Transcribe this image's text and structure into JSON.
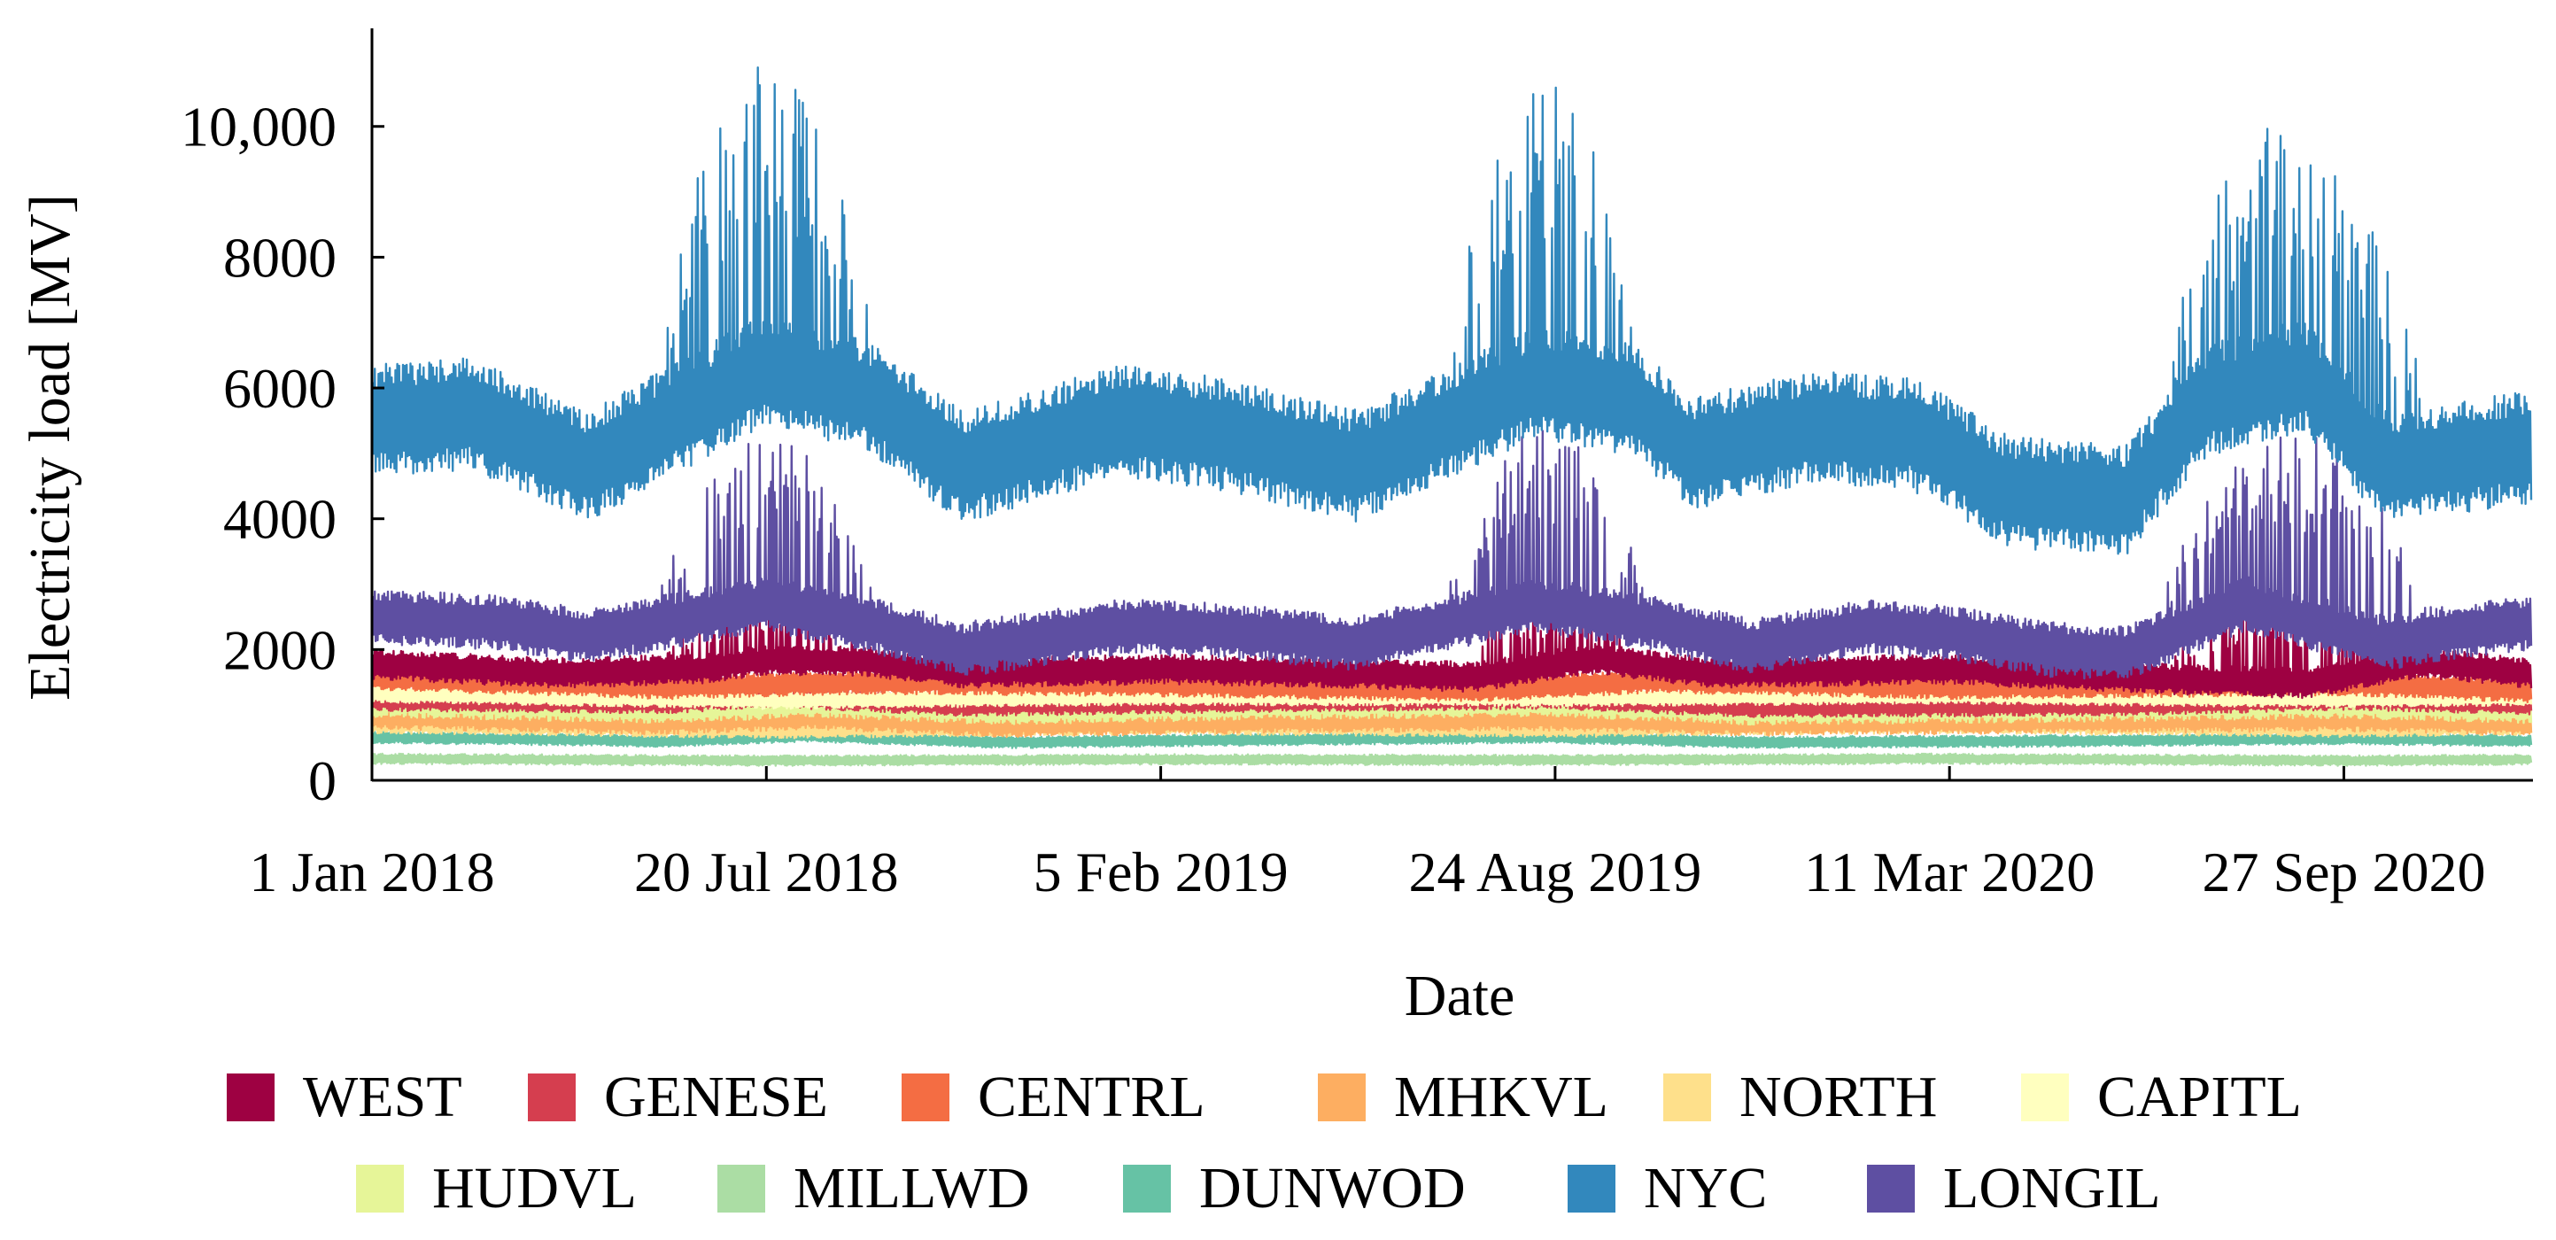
{
  "chart_data": {
    "type": "line",
    "title": "",
    "xlabel": "Date",
    "ylabel": "Electricity load [MV]",
    "ylim": [
      0,
      11500
    ],
    "yticks": [
      0,
      2000,
      4000,
      6000,
      8000,
      10000
    ],
    "ytick_labels": [
      "0",
      "2000",
      "4000",
      "6000",
      "8000",
      "10,000"
    ],
    "xlim": [
      0,
      1095
    ],
    "xticks": [
      0,
      200,
      400,
      600,
      800,
      1000
    ],
    "xtick_labels": [
      "1 Jan 2018",
      "20 Jul 2018",
      "5 Feb 2019",
      "24 Aug 2019",
      "11 Mar 2020",
      "27 Sep 2020"
    ],
    "x_units": "days since 1 Jan 2018",
    "grid": false,
    "legend_position": "bottom",
    "series": [
      {
        "name": "WEST",
        "color": "#9e0142",
        "base": [
          [
            0,
            1780
          ],
          [
            90,
            1640
          ],
          [
            165,
            1700
          ],
          [
            200,
            1840
          ],
          [
            250,
            1820
          ],
          [
            300,
            1640
          ],
          [
            400,
            1700
          ],
          [
            470,
            1660
          ],
          [
            560,
            1580
          ],
          [
            620,
            1860
          ],
          [
            680,
            1640
          ],
          [
            800,
            1700
          ],
          [
            900,
            1560
          ],
          [
            980,
            1480
          ],
          [
            1040,
            1800
          ],
          [
            1100,
            1620
          ]
        ],
        "swing": 230,
        "peaks": [
          [
            140,
            260,
            2700
          ],
          [
            540,
            650,
            2650
          ],
          [
            900,
            1050,
            2700
          ]
        ]
      },
      {
        "name": "GENESE",
        "color": "#d53e4f",
        "base": [
          [
            0,
            1220
          ],
          [
            150,
            1180
          ],
          [
            200,
            1280
          ],
          [
            300,
            1140
          ],
          [
            450,
            1200
          ],
          [
            600,
            1250
          ],
          [
            700,
            1120
          ],
          [
            900,
            1150
          ],
          [
            1000,
            1240
          ],
          [
            1100,
            1160
          ]
        ],
        "swing": 160,
        "peaks": []
      },
      {
        "name": "CENTRL",
        "color": "#f46d43",
        "base": [
          [
            0,
            1560
          ],
          [
            150,
            1420
          ],
          [
            250,
            1500
          ],
          [
            400,
            1460
          ],
          [
            560,
            1380
          ],
          [
            650,
            1520
          ],
          [
            800,
            1420
          ],
          [
            1000,
            1480
          ],
          [
            1100,
            1360
          ]
        ],
        "swing": 180,
        "peaks": []
      },
      {
        "name": "MHKVL",
        "color": "#fdae61",
        "base": [
          [
            0,
            980
          ],
          [
            150,
            900
          ],
          [
            220,
            980
          ],
          [
            320,
            860
          ],
          [
            450,
            920
          ],
          [
            600,
            960
          ],
          [
            700,
            880
          ],
          [
            850,
            920
          ],
          [
            1000,
            950
          ],
          [
            1100,
            880
          ]
        ],
        "swing": 200,
        "peaks": []
      },
      {
        "name": "NORTH",
        "color": "#fee08b",
        "base": [
          [
            0,
            860
          ],
          [
            200,
            780
          ],
          [
            400,
            840
          ],
          [
            600,
            800
          ],
          [
            800,
            860
          ],
          [
            1000,
            800
          ],
          [
            1100,
            840
          ]
        ],
        "swing": 140,
        "peaks": []
      },
      {
        "name": "CAPITL",
        "color": "#ffffbf",
        "base": [
          [
            0,
            1320
          ],
          [
            200,
            1220
          ],
          [
            400,
            1280
          ],
          [
            600,
            1260
          ],
          [
            800,
            1300
          ],
          [
            1000,
            1240
          ],
          [
            1100,
            1280
          ]
        ],
        "swing": 130,
        "peaks": []
      },
      {
        "name": "HUDVL",
        "color": "#e6f598",
        "base": [
          [
            0,
            1180
          ],
          [
            150,
            1080
          ],
          [
            220,
            1180
          ],
          [
            320,
            1060
          ],
          [
            450,
            1140
          ],
          [
            600,
            1180
          ],
          [
            700,
            1060
          ],
          [
            850,
            1100
          ],
          [
            1000,
            1160
          ],
          [
            1100,
            1080
          ]
        ],
        "swing": 210,
        "peaks": []
      },
      {
        "name": "MILLWD",
        "color": "#abdda4",
        "base": [
          [
            0,
            330
          ],
          [
            200,
            300
          ],
          [
            400,
            320
          ],
          [
            600,
            310
          ],
          [
            800,
            330
          ],
          [
            1000,
            300
          ],
          [
            1100,
            320
          ]
        ],
        "swing": 80,
        "peaks": []
      },
      {
        "name": "DUNWOD",
        "color": "#66c2a5",
        "base": [
          [
            0,
            660
          ],
          [
            150,
            600
          ],
          [
            220,
            680
          ],
          [
            320,
            580
          ],
          [
            450,
            620
          ],
          [
            600,
            660
          ],
          [
            700,
            580
          ],
          [
            850,
            600
          ],
          [
            1000,
            640
          ],
          [
            1100,
            600
          ]
        ],
        "swing": 90,
        "peaks": []
      },
      {
        "name": "NYC",
        "color": "#3288bd",
        "base": [
          [
            0,
            5500
          ],
          [
            50,
            5600
          ],
          [
            110,
            4800
          ],
          [
            200,
            6300
          ],
          [
            250,
            5900
          ],
          [
            300,
            4800
          ],
          [
            380,
            5500
          ],
          [
            430,
            5300
          ],
          [
            500,
            4800
          ],
          [
            590,
            6100
          ],
          [
            640,
            5800
          ],
          [
            670,
            5000
          ],
          [
            730,
            5400
          ],
          [
            780,
            5300
          ],
          [
            800,
            5000
          ],
          [
            830,
            4400
          ],
          [
            890,
            4300
          ],
          [
            930,
            5800
          ],
          [
            980,
            6200
          ],
          [
            1020,
            4800
          ],
          [
            1050,
            4900
          ],
          [
            1095,
            5100
          ]
        ],
        "swing": 860,
        "peaks": [
          [
            140,
            260,
            11000
          ],
          [
            540,
            650,
            10700
          ],
          [
            900,
            1050,
            10100
          ]
        ]
      },
      {
        "name": "LONGIL",
        "color": "#5e4fa2",
        "base": [
          [
            0,
            2500
          ],
          [
            60,
            2420
          ],
          [
            110,
            2200
          ],
          [
            200,
            2700
          ],
          [
            250,
            2400
          ],
          [
            300,
            2000
          ],
          [
            380,
            2350
          ],
          [
            430,
            2300
          ],
          [
            500,
            2100
          ],
          [
            590,
            2700
          ],
          [
            650,
            2400
          ],
          [
            700,
            2050
          ],
          [
            760,
            2350
          ],
          [
            800,
            2250
          ],
          [
            850,
            2000
          ],
          [
            890,
            1950
          ],
          [
            950,
            2700
          ],
          [
            1020,
            2100
          ],
          [
            1050,
            2250
          ],
          [
            1095,
            2400
          ]
        ],
        "swing": 420,
        "peaks": [
          [
            140,
            260,
            5300
          ],
          [
            540,
            650,
            5400
          ],
          [
            900,
            1050,
            5300
          ]
        ]
      }
    ]
  }
}
